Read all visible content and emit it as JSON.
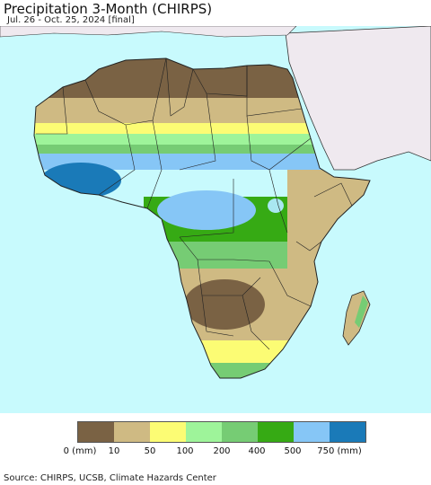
{
  "title": "Precipitation 3-Month (CHIRPS)",
  "subtitle": "Jul. 26 - Oct. 25, 2024 [final]",
  "colors": {
    "ocean": "#c8fafd",
    "outside_region": "#efe9ef",
    "border": "#222222",
    "lake": "#a9e7f1"
  },
  "legend": {
    "colors": [
      "#7a6244",
      "#cfba83",
      "#fcfc74",
      "#9ef49a",
      "#76cc74",
      "#36aa14",
      "#86c6f6",
      "#1a7ab8"
    ],
    "tick_labels": [
      "0 (mm)",
      "10",
      "50",
      "100",
      "200",
      "400",
      "500",
      "750 (mm)"
    ]
  },
  "source": "Source: CHIRPS, UCSB, Climate Hazards Center"
}
